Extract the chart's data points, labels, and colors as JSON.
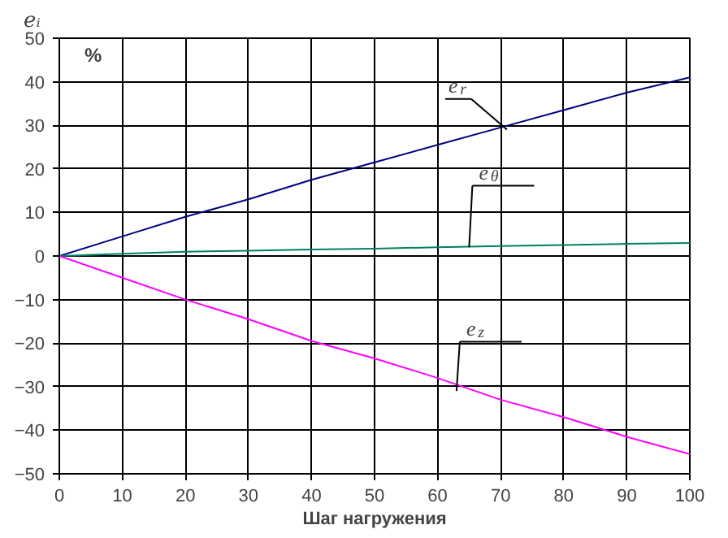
{
  "chart_data": {
    "type": "line",
    "xlabel": "Шаг нагружения",
    "ylabel": "eᵢ",
    "x": [
      0,
      10,
      20,
      30,
      40,
      50,
      60,
      70,
      80,
      90,
      100
    ],
    "series": [
      {
        "color": "#000080",
        "values": [
          0,
          4.5,
          9,
          13,
          17.5,
          21.5,
          25.5,
          29.5,
          33.5,
          37.5,
          41
        ]
      },
      {
        "color": "#008060",
        "values": [
          0,
          0.5,
          1,
          1.2,
          1.5,
          1.7,
          2,
          2.3,
          2.5,
          2.8,
          3
        ]
      },
      {
        "color": "#ff00ff",
        "values": [
          0,
          -5,
          -10,
          -14.5,
          -19.5,
          -23.5,
          -28,
          -33,
          -37,
          -41.5,
          -45.5
        ]
      }
    ],
    "annotations": [
      {
        "text": "e$_{r}$",
        "x": 71,
        "y": 29
      },
      {
        "text": "e$_{θ}$",
        "x": 65,
        "y": 2
      },
      {
        "text": "e$_{z}$",
        "x": 63,
        "y": -31
      },
      "%"
    ],
    "xlim": [
      0,
      100
    ],
    "xticks": [
      0,
      10,
      20,
      30,
      40,
      50,
      60,
      70,
      80,
      90,
      100
    ],
    "ylim": [
      -50,
      50
    ],
    "yticks": [
      -50,
      -40,
      -30,
      -20,
      -10,
      0,
      10,
      20,
      30,
      40,
      50
    ],
    "grid": true,
    "marker": "none",
    "line_style": "solid"
  }
}
